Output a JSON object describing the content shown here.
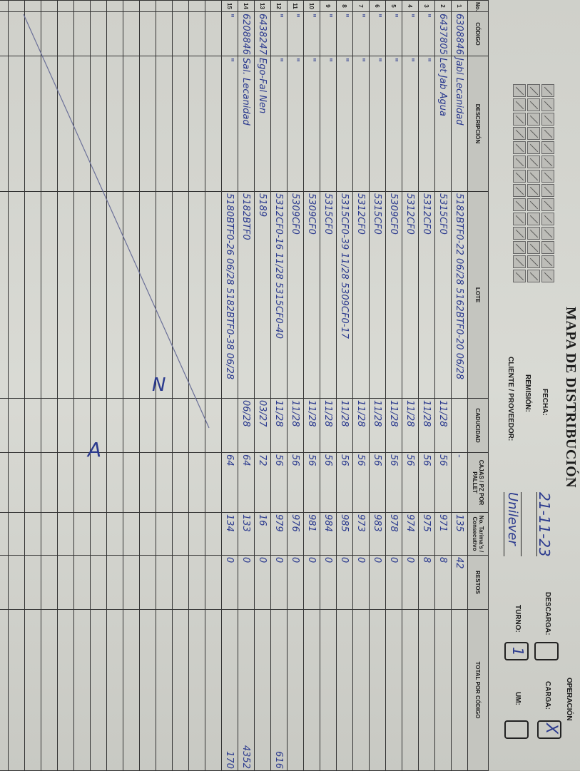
{
  "form": {
    "title": "MAPA DE DISTRIBUCIÓN",
    "fecha_label": "FECHA:",
    "fecha_value": "21-11-23",
    "remision_label": "REMISIÓN:",
    "cliente_label": "CLIENTE / PROVEEDOR:",
    "cliente_value": "Unilever",
    "operacion_label": "OPERACIÓN",
    "descarga_label": "DESCARGA:",
    "carga_label": "CARGA:",
    "carga_value": "X",
    "turno_label": "TURNO:",
    "turno_value": "1",
    "um_label": "UM:"
  },
  "table": {
    "headers": [
      "No.",
      "CÓDIGO",
      "DESCRIPCIÓN",
      "LOTE",
      "CADUCIDAD",
      "CAJAS / PZ POR PALLET",
      "No. Tarima's / Consecutivo",
      "RESTOS",
      "TOTAL POR CÓDIGO"
    ],
    "rows": [
      {
        "no": "1",
        "codigo": "6308846",
        "descripcion": "Jabl Lecanidad",
        "lote": "5182BTF0-22 06/28 5162BTF0-20 06/28",
        "caducidad": "",
        "cajas": "-",
        "tarima": "135",
        "restos": "42",
        "total": ""
      },
      {
        "no": "2",
        "codigo": "6437805",
        "descripcion": "Let Jab Agua",
        "lote": "5315CF0",
        "caducidad": "11/28",
        "cajas": "56",
        "tarima": "971",
        "restos": "8",
        "total": ""
      },
      {
        "no": "3",
        "codigo": "\"",
        "descripcion": "\"",
        "lote": "5312CF0",
        "caducidad": "11/28",
        "cajas": "56",
        "tarima": "975",
        "restos": "8",
        "total": ""
      },
      {
        "no": "4",
        "codigo": "\"",
        "descripcion": "\"",
        "lote": "5312CF0",
        "caducidad": "11/28",
        "cajas": "56",
        "tarima": "974",
        "restos": "0",
        "total": ""
      },
      {
        "no": "5",
        "codigo": "\"",
        "descripcion": "\"",
        "lote": "5309CF0",
        "caducidad": "11/28",
        "cajas": "56",
        "tarima": "978",
        "restos": "0",
        "total": ""
      },
      {
        "no": "6",
        "codigo": "\"",
        "descripcion": "\"",
        "lote": "5315CF0",
        "caducidad": "11/28",
        "cajas": "56",
        "tarima": "983",
        "restos": "0",
        "total": ""
      },
      {
        "no": "7",
        "codigo": "\"",
        "descripcion": "\"",
        "lote": "5312CF0",
        "caducidad": "11/28",
        "cajas": "56",
        "tarima": "973",
        "restos": "0",
        "total": ""
      },
      {
        "no": "8",
        "codigo": "\"",
        "descripcion": "\"",
        "lote": "5315CF0-39 11/28 5309CF0-17",
        "caducidad": "11/28",
        "cajas": "56",
        "tarima": "985",
        "restos": "0",
        "total": ""
      },
      {
        "no": "9",
        "codigo": "\"",
        "descripcion": "\"",
        "lote": "5315CF0",
        "caducidad": "11/28",
        "cajas": "56",
        "tarima": "984",
        "restos": "0",
        "total": ""
      },
      {
        "no": "10",
        "codigo": "\"",
        "descripcion": "\"",
        "lote": "5309CF0",
        "caducidad": "11/28",
        "cajas": "56",
        "tarima": "981",
        "restos": "0",
        "total": ""
      },
      {
        "no": "11",
        "codigo": "\"",
        "descripcion": "\"",
        "lote": "5309CF0",
        "caducidad": "11/28",
        "cajas": "56",
        "tarima": "976",
        "restos": "0",
        "total": ""
      },
      {
        "no": "12",
        "codigo": "\"",
        "descripcion": "\"",
        "lote": "5312CF0-16 11/28 5315CF0-40",
        "caducidad": "11/28",
        "cajas": "56",
        "tarima": "979",
        "restos": "0",
        "total": "616"
      },
      {
        "no": "13",
        "codigo": "6438247",
        "descripcion": "Ego-Fal Nen",
        "lote": "5189",
        "caducidad": "03/27",
        "cajas": "72",
        "tarima": "16",
        "restos": "0",
        "total": ""
      },
      {
        "no": "14",
        "codigo": "6208846",
        "descripcion": "Sal. Lecanidad",
        "lote": "5182BTF0",
        "caducidad": "06/28",
        "cajas": "64",
        "tarima": "133",
        "restos": "0",
        "total": "4352"
      },
      {
        "no": "15",
        "codigo": "\"",
        "descripcion": "\"",
        "lote": "5180BTF0-26 06/28 5182BTF0-38 06/28",
        "caducidad": "",
        "cajas": "64",
        "tarima": "134",
        "restos": "0",
        "total": "170"
      }
    ],
    "blank_rows": 14
  },
  "annotations": {
    "mark_1": "N",
    "mark_2": "A"
  },
  "colors": {
    "ink": "#2b3a8e",
    "paper": "#d4d5cf"
  }
}
